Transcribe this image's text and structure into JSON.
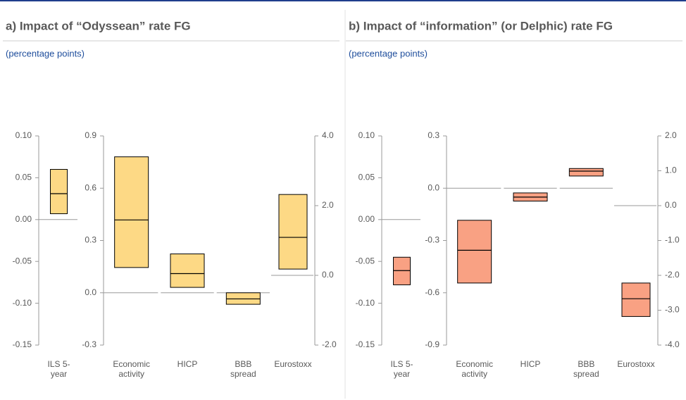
{
  "chart_data": [
    {
      "type": "range",
      "title": "a) Impact of “Odyssean” rate FG",
      "subtitle": "(percentage points)",
      "color": "#fdd985",
      "groups": [
        {
          "axis": "left",
          "ylim": [
            -0.15,
            0.1
          ],
          "yticks": [
            {
              "value": 0.1,
              "label": "0.10"
            },
            0.05,
            {
              "value": 0,
              "label": "0.00"
            },
            -0.05,
            {
              "value": -0.1,
              "label": "-0.10"
            },
            -0.15
          ],
          "categories": [
            "ILS 5-year"
          ],
          "high": [
            0.06
          ],
          "median": [
            0.031
          ],
          "low": [
            0.007
          ]
        },
        {
          "axis": "left",
          "ylim": [
            -0.3,
            0.9
          ],
          "yticks": [
            0.9,
            0.6,
            0.3,
            {
              "value": 0,
              "label": "0.0"
            },
            -0.3
          ],
          "categories": [
            "Economic activity",
            "HICP",
            "BBB spread"
          ],
          "high": [
            0.78,
            0.223,
            0.0
          ],
          "median": [
            0.418,
            0.11,
            -0.035
          ],
          "low": [
            0.145,
            0.031,
            -0.066
          ]
        },
        {
          "axis": "right",
          "ylim": [
            -2,
            4
          ],
          "yticks": [
            {
              "value": 4,
              "label": "4.0"
            },
            {
              "value": 2,
              "label": "2.0"
            },
            {
              "value": 0,
              "label": "0.0"
            },
            {
              "value": -2,
              "label": "-2.0"
            }
          ],
          "categories": [
            "Eurostoxx"
          ],
          "high": [
            2.32
          ],
          "median": [
            1.09
          ],
          "low": [
            0.18
          ]
        }
      ]
    },
    {
      "type": "range",
      "title": "b) Impact of “information” (or Delphic) rate FG",
      "subtitle": "(percentage points)",
      "color": "#f9a183",
      "groups": [
        {
          "axis": "left",
          "ylim": [
            -0.15,
            0.1
          ],
          "yticks": [
            {
              "value": 0.1,
              "label": "0.10"
            },
            0.05,
            {
              "value": 0,
              "label": "0.00"
            },
            -0.05,
            {
              "value": -0.1,
              "label": "-0.10"
            },
            -0.15
          ],
          "categories": [
            "ILS 5-year"
          ],
          "high": [
            -0.045
          ],
          "median": [
            -0.061
          ],
          "low": [
            -0.078
          ]
        },
        {
          "axis": "left",
          "ylim": [
            -0.9,
            0.3
          ],
          "yticks": [
            0.3,
            {
              "value": 0,
              "label": "0.0"
            },
            -0.3,
            -0.6,
            -0.9
          ],
          "categories": [
            "Economic activity",
            "HICP",
            "BBB spread"
          ],
          "high": [
            -0.184,
            -0.027,
            0.113
          ],
          "median": [
            -0.356,
            -0.051,
            0.098
          ],
          "low": [
            -0.544,
            -0.074,
            0.07
          ]
        },
        {
          "axis": "right",
          "ylim": [
            -4,
            2
          ],
          "yticks": [
            {
              "value": 2,
              "label": "2.0"
            },
            {
              "value": 1,
              "label": "1.0"
            },
            {
              "value": 0,
              "label": "0.0"
            },
            {
              "value": -1,
              "label": "-1.0"
            },
            {
              "value": -2,
              "label": "-2.0"
            },
            {
              "value": -3,
              "label": "-3.0"
            },
            {
              "value": -4,
              "label": "-4.0"
            }
          ],
          "categories": [
            "Eurostoxx"
          ],
          "high": [
            -2.22
          ],
          "median": [
            -2.67
          ],
          "low": [
            -3.18
          ]
        }
      ]
    }
  ]
}
